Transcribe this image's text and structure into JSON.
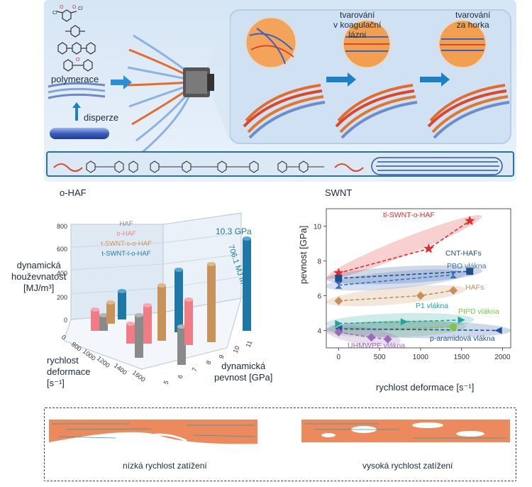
{
  "top_panel": {
    "labels": {
      "polymerization": "polymerace",
      "dispersion": "disperze",
      "coag_bath": [
        "tvarování",
        "v koagulační",
        "lázni"
      ],
      "hot_drawing": [
        "tvarování",
        "za horka"
      ]
    },
    "chem_labels": {
      "cl1": "Cl",
      "cl2": "Cl",
      "o1": "O",
      "o2": "O",
      "o3": "O"
    }
  },
  "section_labels": {
    "ohaf": "o-HAF",
    "swnt": "SWNT"
  },
  "chart3d": {
    "z_ticks": [
      "0",
      "200",
      "400",
      "600",
      "800"
    ],
    "z_label": [
      "dynamická",
      "houževnatost",
      "[MJ/m³]"
    ],
    "x_ticks": [
      "0",
      "800",
      "1000",
      "1200",
      "1400",
      "1600"
    ],
    "x_label": [
      "rychlost",
      "deformace",
      "[s⁻¹]"
    ],
    "y_ticks": [
      "5",
      "6",
      "7",
      "8",
      "9",
      "10",
      "11"
    ],
    "y_label": [
      "dynamická",
      "pevnost [GPa]"
    ],
    "legend": [
      "HAF",
      "o-HAF",
      "t-SWNT-s-o-HAF",
      "t-SWNT-l-o-HAF"
    ],
    "annotation_strength": "10.3 GPa",
    "annotation_toughness": "706.1 MJ m⁻³",
    "colors": {
      "HAF": "#8a8a8a",
      "o-HAF": "#f07d86",
      "t-SWNT-s-o-HAF": "#c9925b",
      "t-SWNT-l-o-HAF": "#1f77a6"
    }
  },
  "chart_data": {
    "type": "scatter",
    "xlabel": "rychlost deformace [s⁻¹]",
    "ylabel": "pevnost [GPa]",
    "xlim": [
      -150,
      2100
    ],
    "ylim": [
      3,
      11
    ],
    "x_ticks": [
      "0",
      "500",
      "1000",
      "1500",
      "2000"
    ],
    "y_ticks": [
      "4",
      "6",
      "8",
      "10"
    ],
    "series": [
      {
        "name": "tl-SWNT-o-HAF",
        "color": "#e52a2a",
        "marker": "star",
        "x": [
          0,
          1100,
          1600
        ],
        "y": [
          7.3,
          8.7,
          10.3
        ]
      },
      {
        "name": "CNT-HAFs",
        "color": "#1f4e8c",
        "marker": "square",
        "x": [
          0,
          1600
        ],
        "y": [
          7.0,
          7.4
        ]
      },
      {
        "name": "PBO vlákna",
        "color": "#3a6fbf",
        "marker": "bowtie",
        "x": [
          0,
          1400
        ],
        "y": [
          6.6,
          7.2
        ]
      },
      {
        "name": "HAFs",
        "color": "#c49058",
        "marker": "diamond",
        "x": [
          0,
          1000,
          1400
        ],
        "y": [
          5.7,
          6.0,
          6.3
        ]
      },
      {
        "name": "P1 vlákna",
        "color": "#22a39a",
        "marker": "triangle-right",
        "x": [
          0,
          800,
          1500
        ],
        "y": [
          4.4,
          4.5,
          4.6
        ]
      },
      {
        "name": "PIPD vlákna",
        "color": "#7ac943",
        "marker": "circle",
        "x": [
          0,
          1400
        ],
        "y": [
          4.0,
          4.2
        ]
      },
      {
        "name": "p-aramidová vlákna",
        "color": "#1d4f9c",
        "marker": "triangle-left",
        "x": [
          0,
          1950
        ],
        "y": [
          4.1,
          4.0
        ]
      },
      {
        "name": "UHMWPE vlákna",
        "color": "#9b6bb9",
        "marker": "diamond",
        "x": [
          0,
          400,
          600
        ],
        "y": [
          3.9,
          3.6,
          3.5
        ]
      }
    ]
  },
  "bottom_panel": {
    "low_rate": "nízká rychlost zatížení",
    "high_rate": "vysoká rychlost zatížení"
  }
}
